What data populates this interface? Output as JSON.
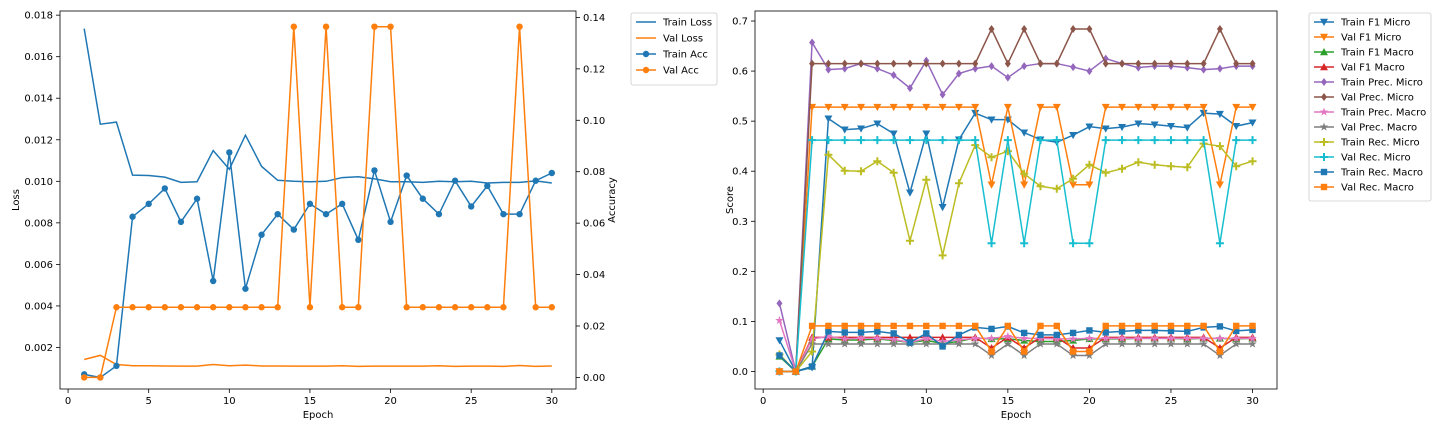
{
  "chart_data": [
    {
      "type": "line",
      "xlabel": "Epoch",
      "ylabel": "Loss",
      "ylabel_right": "Accuracy",
      "xlim": [
        -0.5,
        31.5
      ],
      "ylim": [
        0.0,
        0.0182
      ],
      "ylim_right": [
        -0.0045,
        0.1425
      ],
      "x_ticks": [
        0,
        5,
        10,
        15,
        20,
        25,
        30
      ],
      "y_ticks": [
        0.002,
        0.004,
        0.006,
        0.008,
        0.01,
        0.012,
        0.014,
        0.016,
        0.018
      ],
      "y_tick_labels": [
        "0.002",
        "0.004",
        "0.006",
        "0.008",
        "0.010",
        "0.012",
        "0.014",
        "0.016",
        "0.018"
      ],
      "y_right_ticks": [
        0.0,
        0.02,
        0.04,
        0.06,
        0.08,
        0.1,
        0.12,
        0.14
      ],
      "y_right_tick_labels": [
        "0.00",
        "0.02",
        "0.04",
        "0.06",
        "0.08",
        "0.10",
        "0.12",
        "0.14"
      ],
      "legend_position": "outside-right-top",
      "x": [
        1,
        2,
        3,
        4,
        5,
        6,
        7,
        8,
        9,
        10,
        11,
        12,
        13,
        14,
        15,
        16,
        17,
        18,
        19,
        20,
        21,
        22,
        23,
        24,
        25,
        26,
        27,
        28,
        29,
        30
      ],
      "series": [
        {
          "name": "Train Loss",
          "axis": "left",
          "color": "#1f77b4",
          "marker": "none",
          "values": [
            0.01735,
            0.01275,
            0.01285,
            0.0103,
            0.01028,
            0.0102,
            0.00995,
            0.00998,
            0.01148,
            0.01058,
            0.01222,
            0.01072,
            0.01005,
            0.01,
            0.00998,
            0.01,
            0.01018,
            0.01022,
            0.01012,
            0.00998,
            0.00998,
            0.00995,
            0.01,
            0.00998,
            0.01,
            0.00992,
            0.00995,
            0.00995,
            0.01002,
            0.00992
          ]
        },
        {
          "name": "Val Loss",
          "axis": "left",
          "color": "#ff7f0e",
          "marker": "none",
          "values": [
            0.00142,
            0.00162,
            0.00118,
            0.00112,
            0.00112,
            0.00111,
            0.0011,
            0.0011,
            0.00118,
            0.00112,
            0.00115,
            0.00111,
            0.00111,
            0.0011,
            0.0011,
            0.0011,
            0.00112,
            0.00109,
            0.0011,
            0.0011,
            0.0011,
            0.0011,
            0.00112,
            0.00109,
            0.0011,
            0.0011,
            0.00109,
            0.00113,
            0.00109,
            0.00111
          ]
        },
        {
          "name": "Train Acc",
          "axis": "right",
          "color": "#1f77b4",
          "marker": "circle",
          "values": [
            0.0012,
            0.0,
            0.0045,
            0.0625,
            0.0675,
            0.0735,
            0.0605,
            0.0695,
            0.0375,
            0.0875,
            0.0345,
            0.0555,
            0.0635,
            0.0575,
            0.0675,
            0.0635,
            0.0675,
            0.0535,
            0.0805,
            0.0605,
            0.0785,
            0.0695,
            0.0635,
            0.0765,
            0.0665,
            0.0745,
            0.0635,
            0.0635,
            0.0765,
            0.0795
          ]
        },
        {
          "name": "Val Acc",
          "axis": "right",
          "color": "#ff7f0e",
          "marker": "circle",
          "values": [
            0.0,
            0.0,
            0.0273,
            0.0273,
            0.0273,
            0.0273,
            0.0273,
            0.0273,
            0.0273,
            0.0273,
            0.0273,
            0.0273,
            0.0273,
            0.1364,
            0.0273,
            0.1364,
            0.0273,
            0.0273,
            0.1364,
            0.1364,
            0.0273,
            0.0273,
            0.0273,
            0.0273,
            0.0273,
            0.0273,
            0.0273,
            0.1364,
            0.0273,
            0.0273
          ]
        }
      ]
    },
    {
      "type": "line",
      "xlabel": "Epoch",
      "ylabel": "Score",
      "xlim": [
        -0.5,
        31.5
      ],
      "ylim": [
        -0.035,
        0.72
      ],
      "x_ticks": [
        0,
        5,
        10,
        15,
        20,
        25,
        30
      ],
      "y_ticks": [
        0.0,
        0.1,
        0.2,
        0.3,
        0.4,
        0.5,
        0.6,
        0.7
      ],
      "y_tick_labels": [
        "0.0",
        "0.1",
        "0.2",
        "0.3",
        "0.4",
        "0.5",
        "0.6",
        "0.7"
      ],
      "legend_position": "outside-right-top",
      "x": [
        1,
        2,
        3,
        4,
        5,
        6,
        7,
        8,
        9,
        10,
        11,
        12,
        13,
        14,
        15,
        16,
        17,
        18,
        19,
        20,
        21,
        22,
        23,
        24,
        25,
        26,
        27,
        28,
        29,
        30
      ],
      "series": [
        {
          "name": "Train F1 Micro",
          "color": "#1f77b4",
          "marker": "triangle-down",
          "values": [
            0.062,
            0.0,
            0.008,
            0.505,
            0.483,
            0.485,
            0.495,
            0.475,
            0.357,
            0.475,
            0.328,
            0.463,
            0.516,
            0.503,
            0.503,
            0.477,
            0.463,
            0.458,
            0.472,
            0.489,
            0.485,
            0.488,
            0.495,
            0.493,
            0.49,
            0.487,
            0.516,
            0.514,
            0.49,
            0.497
          ]
        },
        {
          "name": "Val F1 Micro",
          "color": "#ff7f0e",
          "marker": "triangle-down",
          "values": [
            0.0,
            0.0,
            0.528,
            0.528,
            0.528,
            0.528,
            0.528,
            0.528,
            0.528,
            0.528,
            0.528,
            0.528,
            0.528,
            0.373,
            0.528,
            0.373,
            0.528,
            0.528,
            0.373,
            0.373,
            0.528,
            0.528,
            0.528,
            0.528,
            0.528,
            0.528,
            0.528,
            0.373,
            0.528,
            0.528
          ]
        },
        {
          "name": "Train F1 Macro",
          "color": "#2ca02c",
          "marker": "triangle-up",
          "values": [
            0.03,
            0.0,
            0.01,
            0.065,
            0.063,
            0.063,
            0.065,
            0.062,
            0.058,
            0.062,
            0.056,
            0.06,
            0.067,
            0.065,
            0.065,
            0.062,
            0.06,
            0.06,
            0.062,
            0.065,
            0.065,
            0.065,
            0.066,
            0.066,
            0.066,
            0.065,
            0.066,
            0.066,
            0.065,
            0.066
          ]
        },
        {
          "name": "Val F1 Macro",
          "color": "#d62728",
          "marker": "triangle-up",
          "values": [
            0.0,
            0.0,
            0.068,
            0.068,
            0.068,
            0.068,
            0.068,
            0.068,
            0.068,
            0.068,
            0.068,
            0.068,
            0.068,
            0.047,
            0.068,
            0.047,
            0.068,
            0.068,
            0.047,
            0.047,
            0.068,
            0.068,
            0.068,
            0.068,
            0.068,
            0.068,
            0.068,
            0.047,
            0.068,
            0.068
          ]
        },
        {
          "name": "Train Prec. Micro",
          "color": "#9467bd",
          "marker": "diamond",
          "values": [
            0.136,
            0.0,
            0.657,
            0.603,
            0.605,
            0.615,
            0.605,
            0.592,
            0.566,
            0.621,
            0.553,
            0.595,
            0.605,
            0.61,
            0.587,
            0.61,
            0.615,
            0.615,
            0.608,
            0.6,
            0.625,
            0.615,
            0.607,
            0.61,
            0.61,
            0.607,
            0.603,
            0.605,
            0.61,
            0.61
          ]
        },
        {
          "name": "Val Prec. Micro",
          "color": "#8c564b",
          "marker": "diamond",
          "values": [
            0.0,
            0.0,
            0.615,
            0.615,
            0.615,
            0.615,
            0.615,
            0.615,
            0.615,
            0.615,
            0.615,
            0.615,
            0.615,
            0.684,
            0.615,
            0.684,
            0.615,
            0.615,
            0.684,
            0.684,
            0.615,
            0.615,
            0.615,
            0.615,
            0.615,
            0.615,
            0.615,
            0.684,
            0.615,
            0.615
          ]
        },
        {
          "name": "Train Prec. Macro",
          "color": "#e377c2",
          "marker": "star",
          "values": [
            0.102,
            0.0,
            0.065,
            0.07,
            0.065,
            0.066,
            0.066,
            0.064,
            0.058,
            0.066,
            0.06,
            0.063,
            0.066,
            0.066,
            0.07,
            0.066,
            0.066,
            0.065,
            0.065,
            0.066,
            0.066,
            0.066,
            0.066,
            0.066,
            0.066,
            0.066,
            0.066,
            0.066,
            0.066,
            0.066
          ]
        },
        {
          "name": "Val Prec. Macro",
          "color": "#7f7f7f",
          "marker": "star",
          "values": [
            0.0,
            0.0,
            0.055,
            0.055,
            0.055,
            0.055,
            0.055,
            0.055,
            0.055,
            0.055,
            0.055,
            0.055,
            0.055,
            0.032,
            0.055,
            0.032,
            0.055,
            0.055,
            0.032,
            0.032,
            0.055,
            0.055,
            0.055,
            0.055,
            0.055,
            0.055,
            0.055,
            0.032,
            0.055,
            0.055
          ]
        },
        {
          "name": "Train Rec. Micro",
          "color": "#bcbd22",
          "marker": "plus",
          "values": [
            0.034,
            0.0,
            0.04,
            0.433,
            0.401,
            0.4,
            0.42,
            0.397,
            0.261,
            0.383,
            0.232,
            0.376,
            0.452,
            0.428,
            0.44,
            0.395,
            0.37,
            0.365,
            0.385,
            0.413,
            0.397,
            0.405,
            0.418,
            0.413,
            0.41,
            0.408,
            0.455,
            0.45,
            0.41,
            0.42
          ]
        },
        {
          "name": "Val Rec. Micro",
          "color": "#17becf",
          "marker": "plus",
          "values": [
            0.0,
            0.0,
            0.462,
            0.462,
            0.462,
            0.462,
            0.462,
            0.462,
            0.462,
            0.462,
            0.462,
            0.462,
            0.462,
            0.256,
            0.462,
            0.256,
            0.462,
            0.462,
            0.256,
            0.256,
            0.462,
            0.462,
            0.462,
            0.462,
            0.462,
            0.462,
            0.462,
            0.256,
            0.462,
            0.462
          ]
        },
        {
          "name": "Train Rec. Macro",
          "color": "#1f77b4",
          "marker": "square",
          "values": [
            0.032,
            0.0,
            0.01,
            0.08,
            0.078,
            0.078,
            0.08,
            0.076,
            0.058,
            0.076,
            0.05,
            0.073,
            0.088,
            0.085,
            0.09,
            0.077,
            0.073,
            0.073,
            0.077,
            0.082,
            0.078,
            0.08,
            0.082,
            0.082,
            0.081,
            0.08,
            0.088,
            0.09,
            0.081,
            0.083
          ]
        },
        {
          "name": "Val Rec. Macro",
          "color": "#ff7f0e",
          "marker": "square",
          "values": [
            0.0,
            0.0,
            0.091,
            0.091,
            0.091,
            0.091,
            0.091,
            0.091,
            0.091,
            0.091,
            0.091,
            0.091,
            0.091,
            0.04,
            0.091,
            0.04,
            0.091,
            0.091,
            0.04,
            0.04,
            0.091,
            0.091,
            0.091,
            0.091,
            0.091,
            0.091,
            0.091,
            0.04,
            0.091,
            0.091
          ]
        }
      ]
    }
  ]
}
